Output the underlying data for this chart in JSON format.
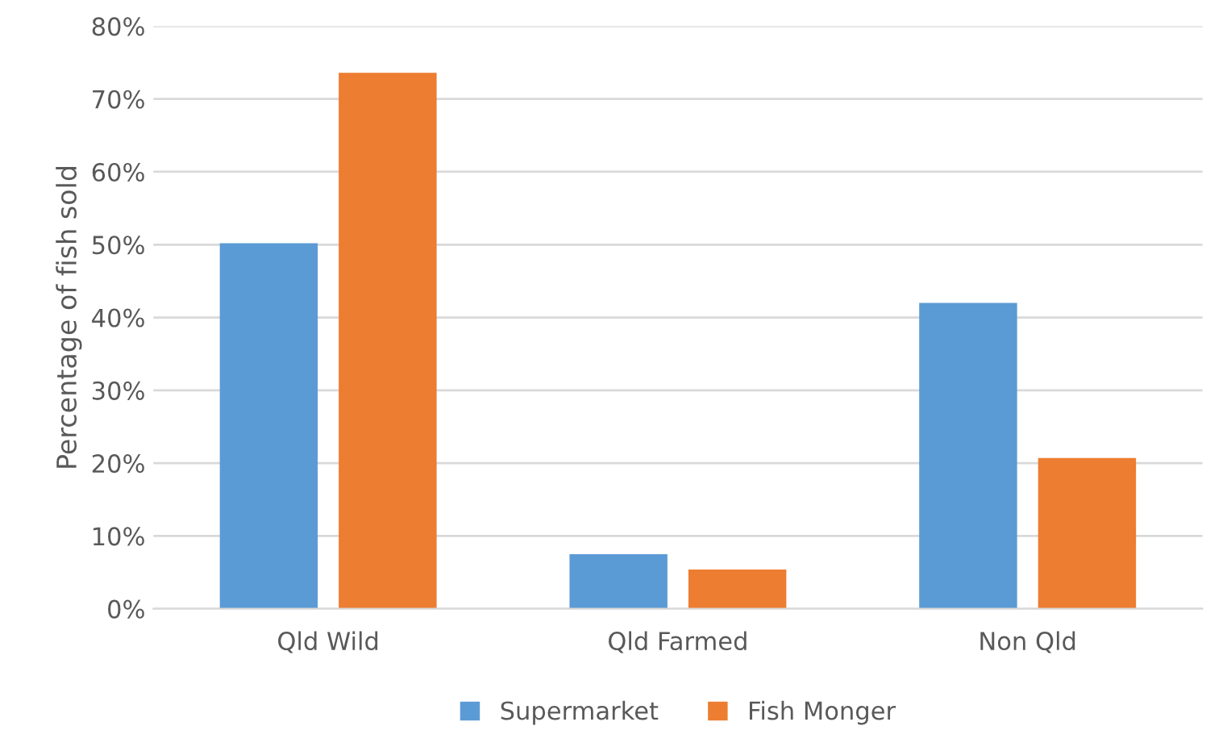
{
  "chart_data": {
    "type": "bar",
    "ylabel": "Percentage of fish sold",
    "categories": [
      "Qld Wild",
      "Qld Farmed",
      "Non Qld"
    ],
    "series": [
      {
        "name": "Supermarket",
        "color": "#5b9bd5",
        "values": [
          50.2,
          7.5,
          42
        ]
      },
      {
        "name": "Fish Monger",
        "color": "#ed7d31",
        "values": [
          73.6,
          5.4,
          20.7
        ]
      }
    ],
    "ylim": [
      0,
      80
    ],
    "yticks": [
      {
        "value": 0,
        "label": "0%"
      },
      {
        "value": 10,
        "label": "10%"
      },
      {
        "value": 20,
        "label": "20%"
      },
      {
        "value": 30,
        "label": "30%"
      },
      {
        "value": 40,
        "label": "40%"
      },
      {
        "value": 50,
        "label": "50%"
      },
      {
        "value": 60,
        "label": "60%"
      },
      {
        "value": 70,
        "label": "70%"
      },
      {
        "value": 80,
        "label": "80%"
      }
    ],
    "grid": "y",
    "legend": "bottom"
  }
}
